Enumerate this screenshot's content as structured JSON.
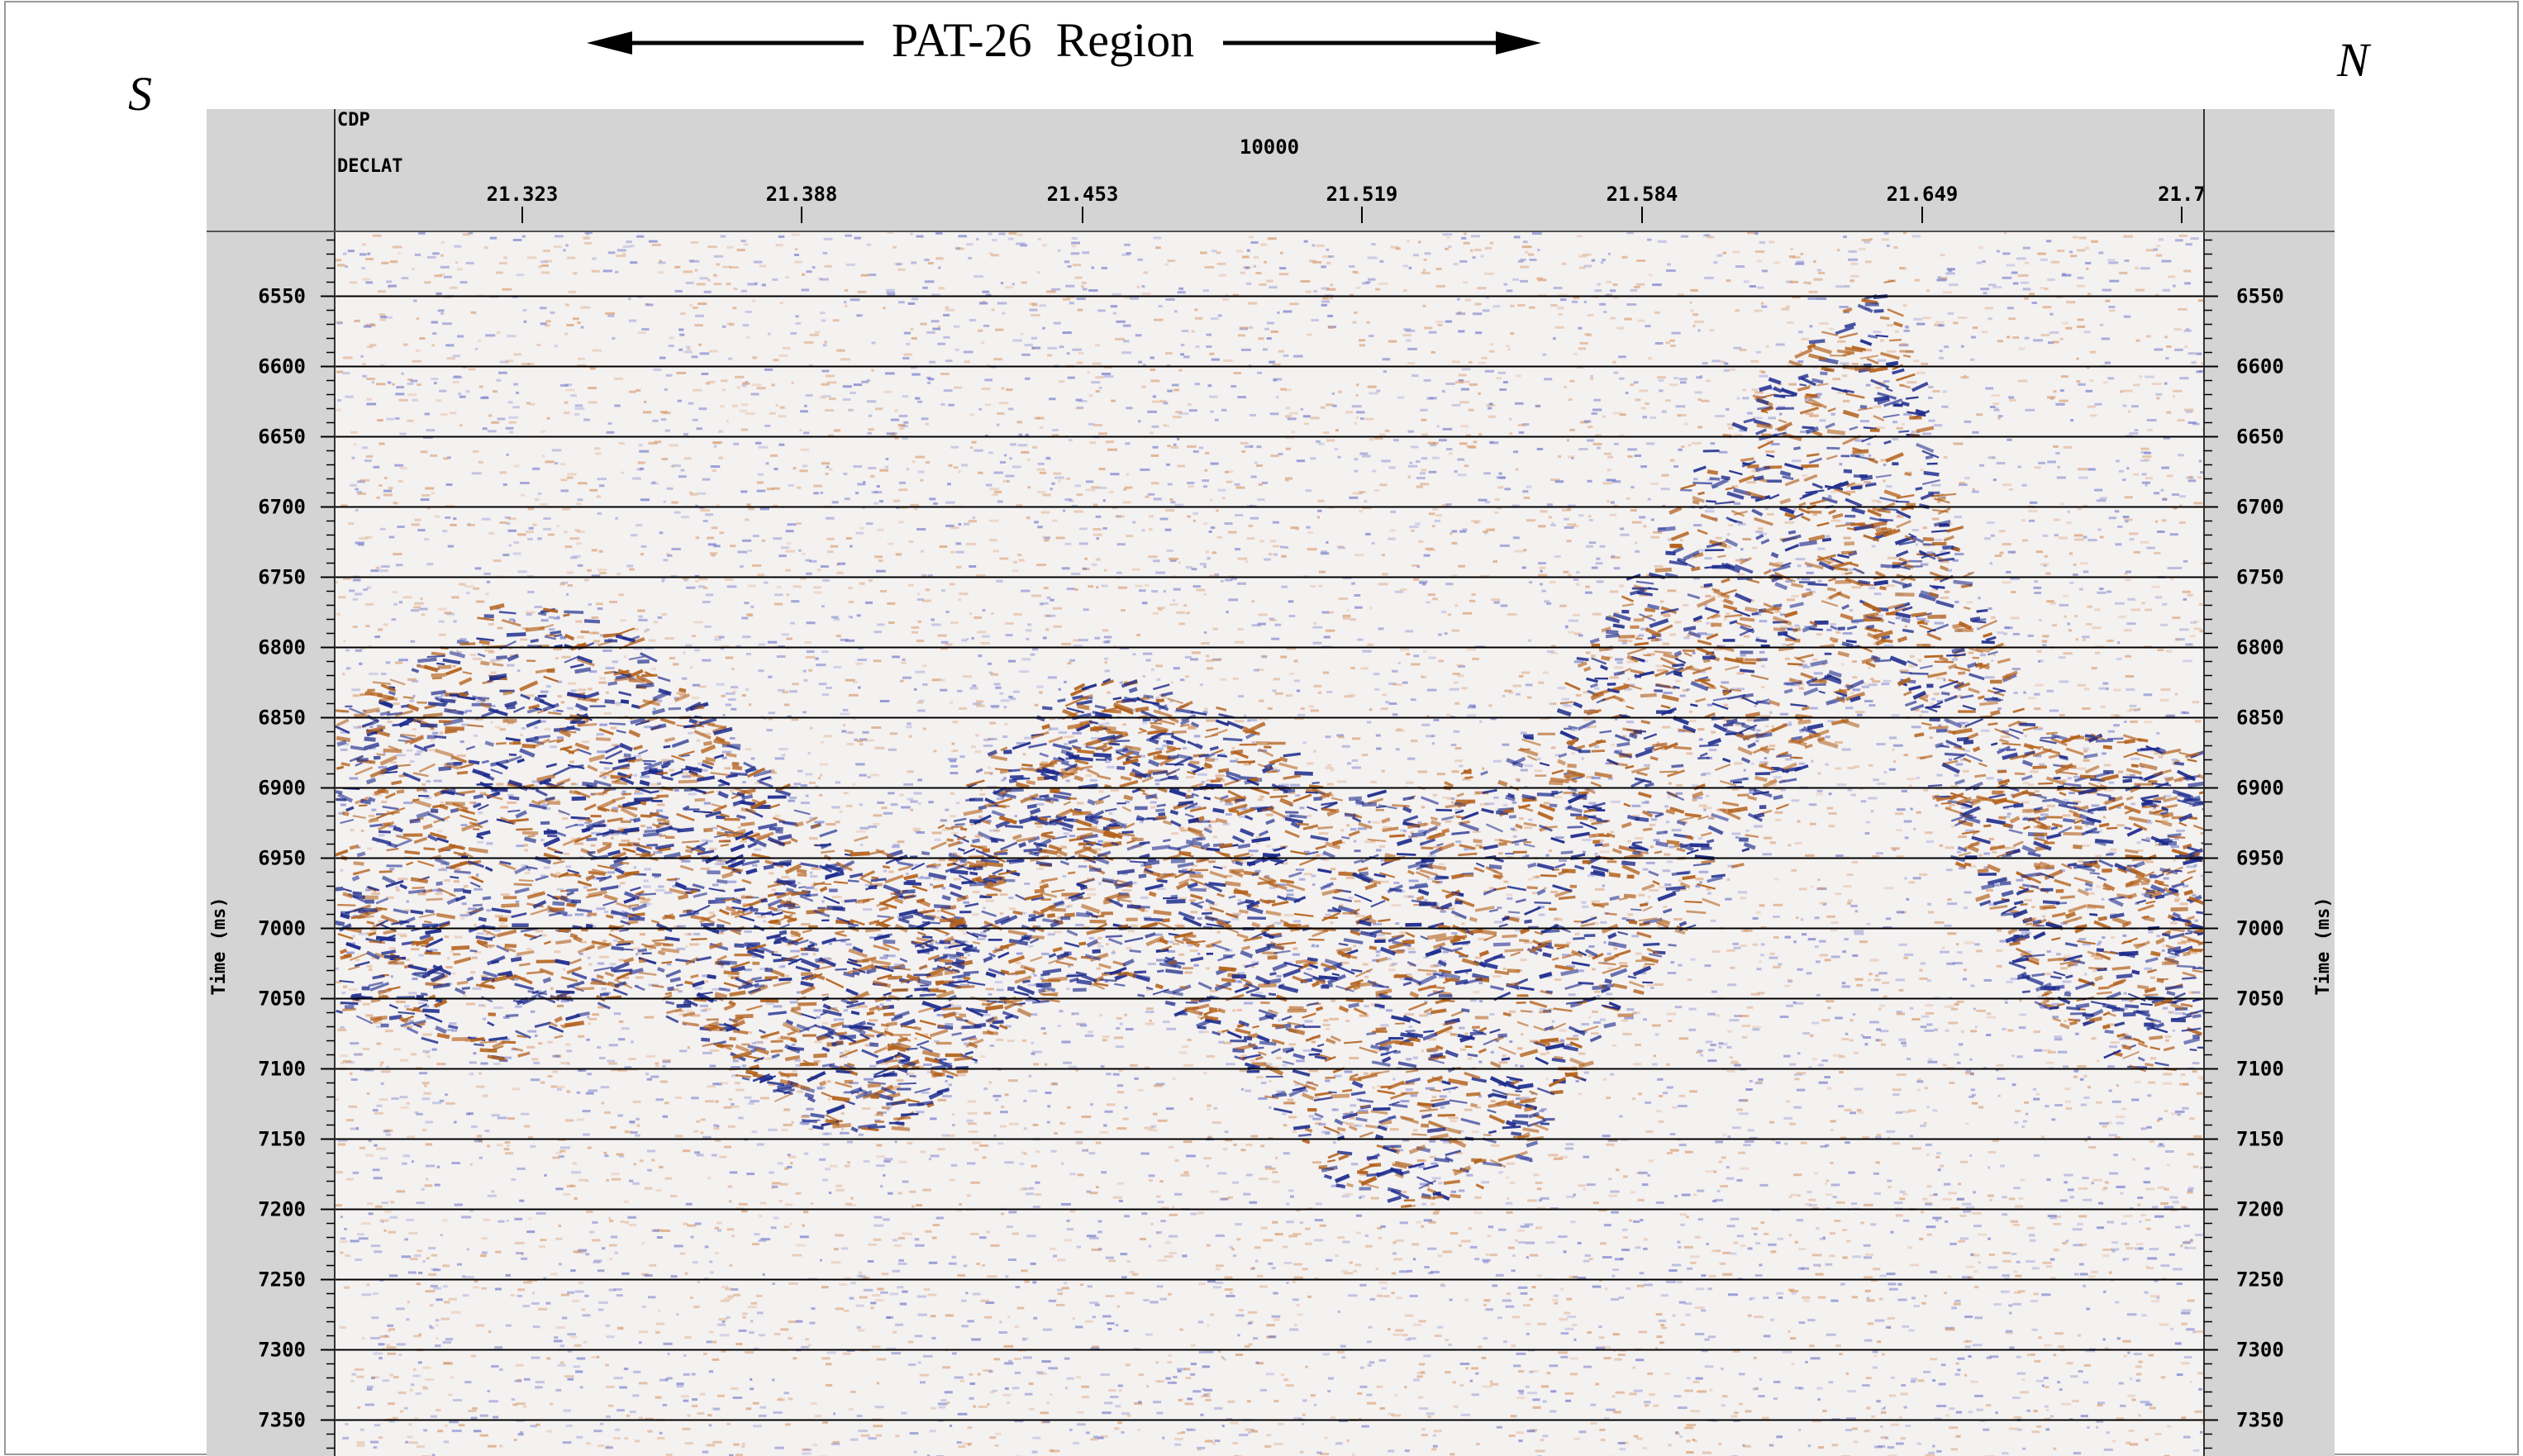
{
  "annotation": {
    "region_label": "PAT-26  Region",
    "south_label": "S",
    "north_label": "N"
  },
  "header": {
    "cdp_label": "CDP",
    "cdp_value": "10000",
    "declat_label": "DECLAT",
    "declat_ticks": [
      "21.323",
      "21.388",
      "21.453",
      "21.519",
      "21.584",
      "21.649",
      "21.7"
    ]
  },
  "axis": {
    "left_title": "Time (ms)",
    "right_title": "Time (ms)",
    "time_ticks": [
      6550,
      6600,
      6650,
      6700,
      6750,
      6800,
      6850,
      6900,
      6950,
      7000,
      7050,
      7100,
      7150,
      7200,
      7250,
      7300,
      7350
    ],
    "time_range": [
      6505,
      7380
    ]
  },
  "colors": {
    "panel_gray": "#d4d4d4",
    "positive": "#1b2a8c",
    "negative": "#b4621c",
    "timeline": "#000000"
  }
}
